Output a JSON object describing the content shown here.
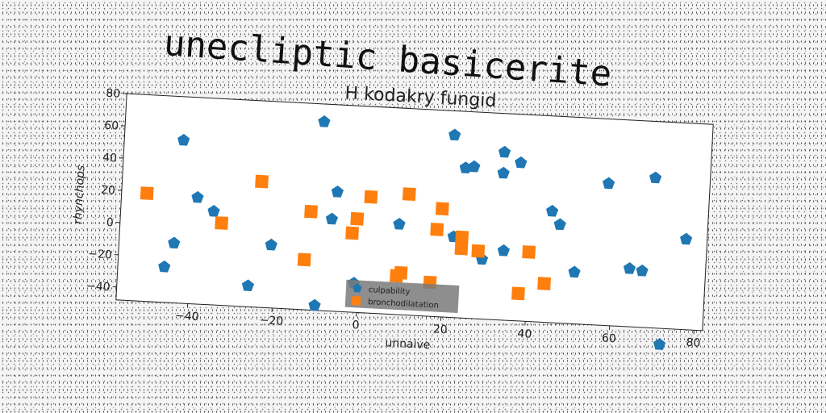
{
  "figure_title": "unecliptic basicerite",
  "chart_data": {
    "type": "scatter",
    "title": "H kodakry fungid",
    "xlabel": "unnaive",
    "ylabel": "rhynchops",
    "xlim": [
      -57,
      82
    ],
    "ylim": [
      -48,
      80
    ],
    "xticks": [
      -40,
      -20,
      0,
      20,
      40,
      60,
      80
    ],
    "yticks": [
      -40,
      -20,
      0,
      20,
      40,
      60,
      80
    ],
    "grid": false,
    "legend_position": "bottom-center",
    "series": [
      {
        "name": "culpability",
        "marker": "pentagon",
        "color": "#1f77b4",
        "points": [
          [
            -43,
            53
          ],
          [
            -39,
            18
          ],
          [
            -35,
            10
          ],
          [
            -44,
            -11
          ],
          [
            -46,
            -26
          ],
          [
            -26,
            -35
          ],
          [
            -21,
            -9
          ],
          [
            -10,
            69
          ],
          [
            -6,
            26
          ],
          [
            -7,
            9
          ],
          [
            -10,
            -45
          ],
          [
            -1,
            -30
          ],
          [
            9,
            8
          ],
          [
            21,
            65
          ],
          [
            22,
            2
          ],
          [
            24,
            45
          ],
          [
            26,
            46
          ],
          [
            33,
            56
          ],
          [
            33,
            43
          ],
          [
            37,
            50
          ],
          [
            34,
            -5
          ],
          [
            29,
            -11
          ],
          [
            45,
            21
          ],
          [
            47,
            13
          ],
          [
            51,
            -16
          ],
          [
            58,
            40
          ],
          [
            64,
            -12
          ],
          [
            67,
            -13
          ],
          [
            69,
            45
          ],
          [
            72,
            -58
          ],
          [
            77,
            8
          ]
        ]
      },
      {
        "name": "bronchodilatation",
        "marker": "square",
        "color": "#ff7f0e",
        "points": [
          [
            -51,
            19
          ],
          [
            -33,
            3
          ],
          [
            -24,
            30
          ],
          [
            -12,
            13
          ],
          [
            -13,
            -17
          ],
          [
            2,
            24
          ],
          [
            -1,
            10
          ],
          [
            -2,
            1
          ],
          [
            11,
            27
          ],
          [
            10,
            -22
          ],
          [
            9,
            -24
          ],
          [
            19,
            19
          ],
          [
            18,
            6
          ],
          [
            17,
            -27
          ],
          [
            24,
            2
          ],
          [
            24,
            -5
          ],
          [
            28,
            -6
          ],
          [
            40,
            -5
          ],
          [
            38,
            -31
          ],
          [
            44,
            -24
          ]
        ]
      }
    ]
  }
}
